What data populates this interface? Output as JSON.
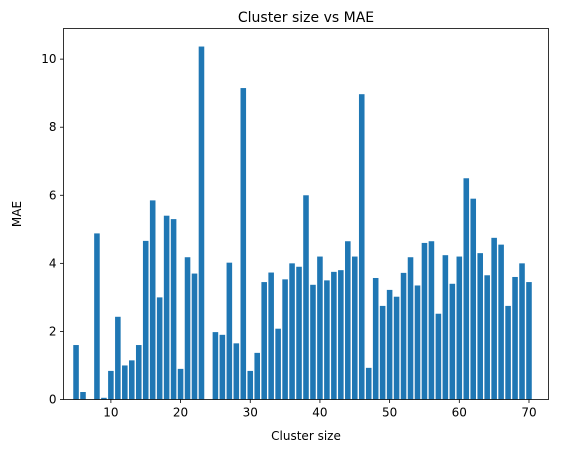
{
  "chart_data": {
    "type": "bar",
    "title": "Cluster size vs MAE",
    "xlabel": "Cluster size",
    "ylabel": "MAE",
    "xlim": [
      3.2,
      72.8
    ],
    "ylim": [
      0,
      10.9
    ],
    "xticks": [
      10,
      20,
      30,
      40,
      50,
      60,
      70
    ],
    "yticks": [
      0,
      2,
      4,
      6,
      8,
      10
    ],
    "grid": false,
    "bar_color": "#1f77b4",
    "x": [
      5,
      6,
      7,
      8,
      9,
      10,
      11,
      12,
      13,
      14,
      15,
      16,
      17,
      18,
      19,
      20,
      21,
      22,
      23,
      24,
      25,
      26,
      27,
      28,
      29,
      30,
      31,
      32,
      33,
      34,
      35,
      36,
      37,
      38,
      39,
      40,
      41,
      42,
      43,
      44,
      45,
      46,
      47,
      48,
      49,
      50,
      51,
      52,
      53,
      54,
      55,
      56,
      57,
      58,
      59,
      60,
      61,
      62,
      63,
      64,
      65,
      66,
      67,
      68,
      69,
      70
    ],
    "values": [
      1.6,
      0.22,
      0,
      4.88,
      0.05,
      0.84,
      2.43,
      1.0,
      1.15,
      1.6,
      4.66,
      5.85,
      3.0,
      5.4,
      5.3,
      0.9,
      4.18,
      3.7,
      10.37,
      0,
      1.98,
      1.9,
      4.02,
      1.65,
      9.15,
      0.84,
      1.37,
      3.45,
      3.73,
      2.08,
      3.53,
      4.0,
      3.9,
      6.0,
      3.37,
      4.2,
      3.5,
      3.75,
      3.8,
      4.65,
      4.2,
      8.97,
      0.93,
      3.57,
      2.75,
      3.22,
      3.02,
      3.72,
      4.18,
      3.35,
      4.6,
      4.65,
      2.52,
      4.24,
      3.4,
      4.2,
      6.5,
      5.9,
      4.3,
      3.65,
      4.75,
      4.55,
      2.75,
      3.6,
      4.0,
      3.45
    ]
  }
}
